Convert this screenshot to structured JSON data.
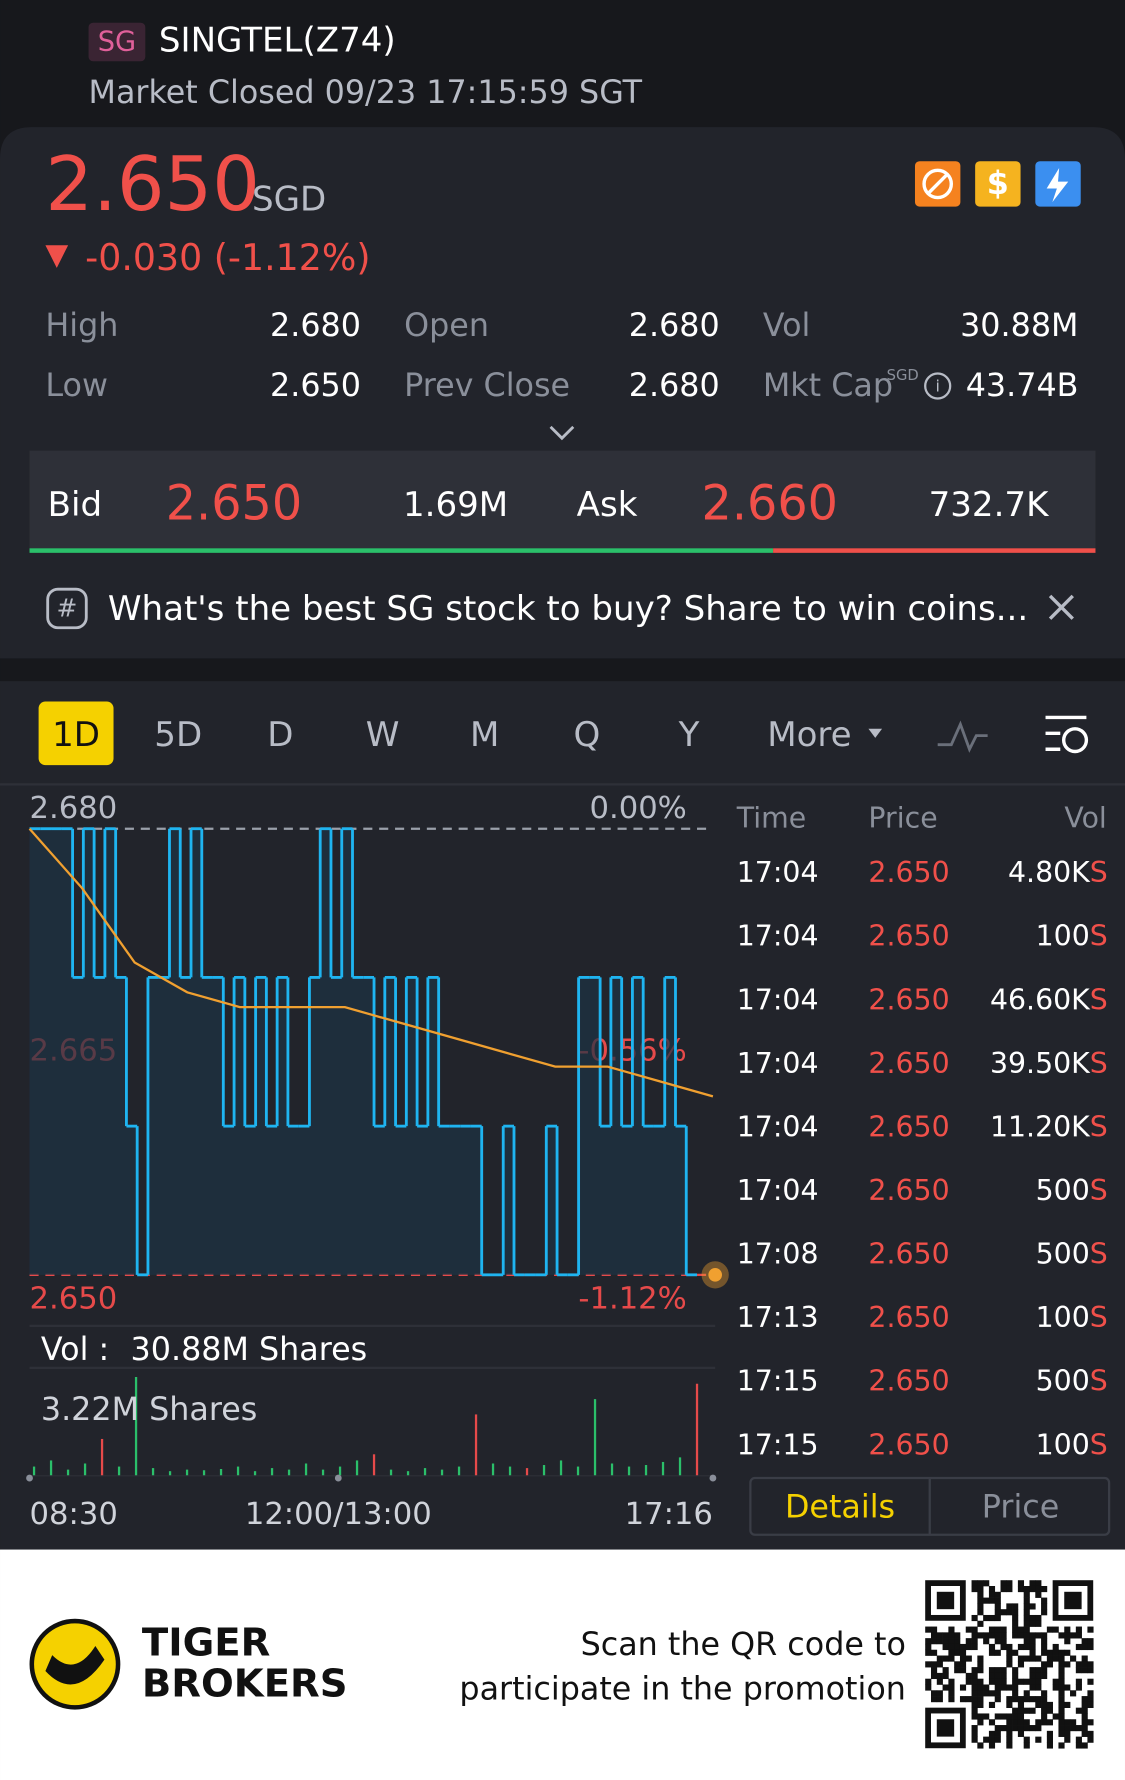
{
  "header": {
    "exchange": "SG",
    "name": "SINGTEL(Z74)",
    "status": "Market Closed 09/23 17:15:59 SGT"
  },
  "quote": {
    "price": "2.650",
    "currency": "SGD",
    "change": "-0.030 (-1.12%)"
  },
  "stats": [
    {
      "label": "High",
      "value": "2.680"
    },
    {
      "label": "Open",
      "value": "2.680"
    },
    {
      "label": "Vol",
      "value": "30.88M"
    },
    {
      "label": "Low",
      "value": "2.650"
    },
    {
      "label": "Prev Close",
      "value": "2.680"
    },
    {
      "label": "Mkt Cap",
      "value": "43.74B"
    }
  ],
  "mkt_cap_currency": "SGD",
  "orderbook": {
    "bid_label": "Bid",
    "bid": "2.650",
    "bid_size": {
      "value": 1690000,
      "label": "1.69M"
    },
    "ask_label": "Ask",
    "ask": "2.660",
    "ask_size": {
      "value": 732700,
      "label": "732.7K"
    }
  },
  "banner": "What's the best SG stock to buy? Share to win coins...",
  "tabs": [
    "1D",
    "5D",
    "D",
    "W",
    "M",
    "Q",
    "Y",
    "More"
  ],
  "chart": {
    "ylim": [
      2.65,
      2.68
    ],
    "yticks": [
      {
        "value": 2.68,
        "label": "2.680"
      },
      {
        "value": 2.665,
        "label": "2.665"
      },
      {
        "value": 2.65,
        "label": "2.650"
      }
    ],
    "pct_labels": [
      "0.00%",
      "-0.56%",
      "-1.12%"
    ],
    "price_color": "#1fb4f0",
    "avg_color": "#f0a030",
    "price": [
      2.68,
      2.68,
      2.68,
      2.68,
      2.67,
      2.68,
      2.67,
      2.68,
      2.67,
      2.66,
      2.65,
      2.67,
      2.67,
      2.68,
      2.67,
      2.68,
      2.67,
      2.67,
      2.66,
      2.67,
      2.66,
      2.67,
      2.66,
      2.67,
      2.66,
      2.66,
      2.67,
      2.68,
      2.67,
      2.68,
      2.67,
      2.67,
      2.66,
      2.67,
      2.66,
      2.67,
      2.66,
      2.67,
      2.66,
      2.66,
      2.66,
      2.66,
      2.65,
      2.65,
      2.66,
      2.65,
      2.65,
      2.65,
      2.66,
      2.65,
      2.65,
      2.67,
      2.67,
      2.66,
      2.67,
      2.66,
      2.67,
      2.66,
      2.66,
      2.67,
      2.66,
      2.65
    ],
    "avg": [
      2.68,
      2.676,
      2.671,
      2.669,
      2.668,
      2.668,
      2.668,
      2.667,
      2.666,
      2.665,
      2.664,
      2.664,
      2.663,
      2.662
    ],
    "vol_label": "Vol :",
    "vol_total": "30.88M Shares",
    "vol_max": {
      "value": 3220000,
      "label": "3.22M Shares"
    },
    "volume": [
      300000,
      500000,
      200000,
      400000,
      1200000,
      300000,
      3220000,
      250000,
      150000,
      200000,
      180000,
      220000,
      300000,
      150000,
      250000,
      200000,
      400000,
      200000,
      300000,
      500000,
      700000,
      200000,
      150000,
      250000,
      200000,
      300000,
      2000000,
      400000,
      300000,
      250000,
      350000,
      500000,
      300000,
      2500000,
      400000,
      300000,
      350000,
      450000,
      600000,
      3000000
    ],
    "volume_colors": [
      "#2bbf6a",
      "#2bbf6a",
      "#2bbf6a",
      "#2bbf6a",
      "#e64a4a",
      "#2bbf6a",
      "#2bbf6a",
      "#2bbf6a",
      "#2bbf6a",
      "#2bbf6a",
      "#2bbf6a",
      "#2bbf6a",
      "#2bbf6a",
      "#2bbf6a",
      "#2bbf6a",
      "#2bbf6a",
      "#2bbf6a",
      "#2bbf6a",
      "#2bbf6a",
      "#2bbf6a",
      "#e64a4a",
      "#2bbf6a",
      "#2bbf6a",
      "#2bbf6a",
      "#2bbf6a",
      "#2bbf6a",
      "#e64a4a",
      "#2bbf6a",
      "#2bbf6a",
      "#e64a4a",
      "#2bbf6a",
      "#2bbf6a",
      "#2bbf6a",
      "#2bbf6a",
      "#2bbf6a",
      "#2bbf6a",
      "#2bbf6a",
      "#2bbf6a",
      "#2bbf6a",
      "#e64a4a"
    ],
    "xticks": [
      "08:30",
      "12:00/13:00",
      "17:16"
    ]
  },
  "trades": {
    "headers": [
      "Time",
      "Price",
      "Vol"
    ],
    "rows": [
      [
        "17:04",
        "2.650",
        "4.80K",
        "S"
      ],
      [
        "17:04",
        "2.650",
        "100",
        "S"
      ],
      [
        "17:04",
        "2.650",
        "46.60K",
        "S"
      ],
      [
        "17:04",
        "2.650",
        "39.50K",
        "S"
      ],
      [
        "17:04",
        "2.650",
        "11.20K",
        "S"
      ],
      [
        "17:04",
        "2.650",
        "500",
        "S"
      ],
      [
        "17:08",
        "2.650",
        "500",
        "S"
      ],
      [
        "17:13",
        "2.650",
        "100",
        "S"
      ],
      [
        "17:15",
        "2.650",
        "500",
        "S"
      ],
      [
        "17:15",
        "2.650",
        "100",
        "S"
      ]
    ]
  },
  "trade_tabs": [
    "Details",
    "Price"
  ],
  "footer": {
    "brand": [
      "TIGER",
      "BROKERS"
    ],
    "cta": [
      "Scan the QR code to",
      "participate in the promotion"
    ]
  }
}
